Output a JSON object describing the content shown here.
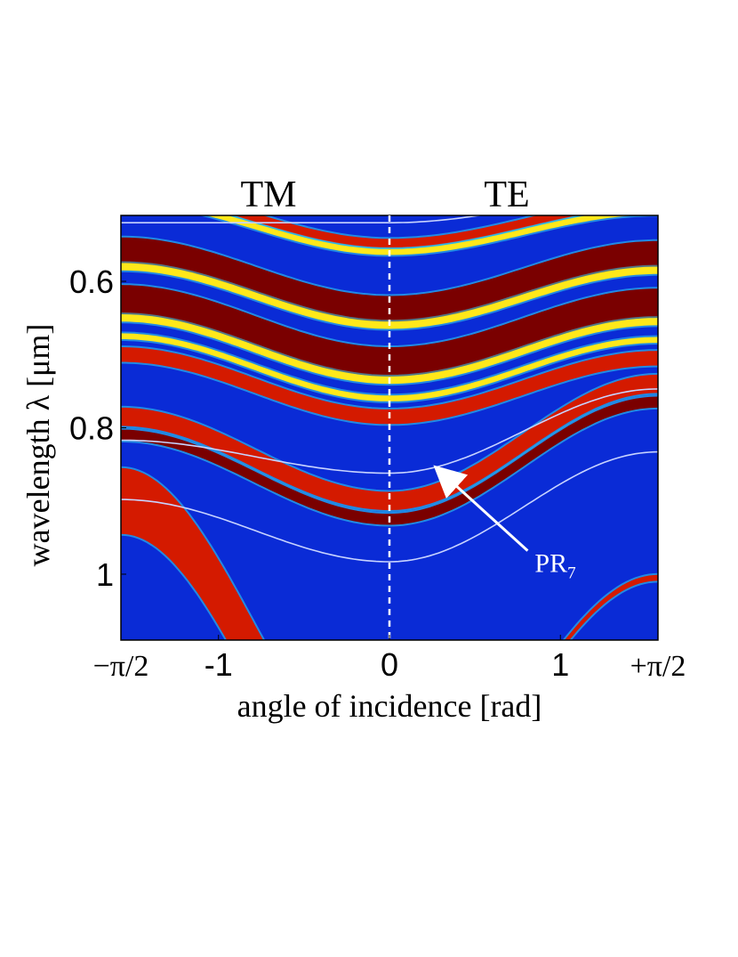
{
  "chart_data": {
    "type": "heatmap",
    "title": "",
    "panel_labels": {
      "left": "TM",
      "right": "TE"
    },
    "xlabel": "angle of incidence [rad]",
    "ylabel": "wavelength λ [μm]",
    "xlim": [
      -1.5708,
      1.5708
    ],
    "ylim": [
      1.09,
      0.51
    ],
    "x_ticks": [
      {
        "value": -1.5708,
        "label": "−π/2"
      },
      {
        "value": -1,
        "label": "-1"
      },
      {
        "value": 0,
        "label": "0"
      },
      {
        "value": 1,
        "label": "1"
      },
      {
        "value": 1.5708,
        "label": "+π/2"
      }
    ],
    "y_ticks": [
      {
        "value": 0.6,
        "label": "0.6"
      },
      {
        "value": 0.8,
        "label": "0.8"
      },
      {
        "value": 1.0,
        "label": "1"
      }
    ],
    "divider": {
      "x": 0,
      "style": "dashed",
      "color": "#ffffff"
    },
    "background_color": "#0a2bd6",
    "colors": {
      "dark_red": "#7a0000",
      "red": "#d41a00",
      "orange": "#ff7a00",
      "yellow": "#ffe81a",
      "cyan": "#35d8f0",
      "light_blue": "#8ab8ff",
      "white_line": "#c8d4ff"
    },
    "bands": [
      {
        "name": "band-top-1",
        "center_at_normal": 0.548,
        "width": 0.012,
        "shift_tm": 0.07,
        "shift_te": 0.055,
        "color": "red"
      },
      {
        "name": "band-top-2",
        "center_at_normal": 0.56,
        "width": 0.008,
        "shift_tm": 0.07,
        "shift_te": 0.055,
        "color": "yellow"
      },
      {
        "name": "band-main-1",
        "center_at_normal": 0.64,
        "width": 0.04,
        "shift_tm": 0.08,
        "shift_te": 0.075,
        "color": "dark_red"
      },
      {
        "name": "band-main-yellow-1",
        "center_at_normal": 0.66,
        "width": 0.01,
        "shift_tm": 0.08,
        "shift_te": 0.075,
        "color": "yellow"
      },
      {
        "name": "band-main-2",
        "center_at_normal": 0.71,
        "width": 0.04,
        "shift_tm": 0.085,
        "shift_te": 0.08,
        "color": "dark_red"
      },
      {
        "name": "band-main-yellow-2",
        "center_at_normal": 0.735,
        "width": 0.01,
        "shift_tm": 0.085,
        "shift_te": 0.08,
        "color": "yellow"
      },
      {
        "name": "band-main-yellow-3",
        "center_at_normal": 0.76,
        "width": 0.008,
        "shift_tm": 0.085,
        "shift_te": 0.08,
        "color": "yellow"
      },
      {
        "name": "band-main-3",
        "center_at_normal": 0.785,
        "width": 0.02,
        "shift_tm": 0.085,
        "shift_te": 0.08,
        "color": "red"
      },
      {
        "name": "band-lower-1",
        "center_at_normal": 0.9,
        "width": 0.025,
        "shift_tm": 0.115,
        "shift_te": 0.16,
        "color": "red"
      },
      {
        "name": "band-lower-2",
        "center_at_normal": 0.925,
        "width": 0.015,
        "shift_tm": 0.115,
        "shift_te": 0.16,
        "color": "dark_red"
      },
      {
        "name": "band-bottom-tm",
        "center_at_normal": 1.33,
        "width": 0.09,
        "shift_tm": 0.43,
        "shift_te": 0.0,
        "color": "red"
      },
      {
        "name": "band-bottom-te",
        "center_at_normal": 1.335,
        "width": 0.008,
        "shift_tm": 0.0,
        "shift_te": 0.33,
        "color": "red"
      }
    ],
    "thin_lines": [
      {
        "name": "line-te-top",
        "center_at_normal": 0.52,
        "shift_tm": 0.0,
        "shift_te": 0.04
      },
      {
        "name": "line-pr7",
        "center_at_normal": 0.862,
        "shift_tm": 0.045,
        "shift_te": 0.115
      },
      {
        "name": "line-lower",
        "center_at_normal": 0.983,
        "shift_tm": 0.085,
        "shift_te": 0.15
      }
    ],
    "annotations": [
      {
        "text": "PR",
        "subscript": "7",
        "x": 0.85,
        "y": 0.985,
        "arrow_to": {
          "x": 0.28,
          "y": 0.856
        }
      }
    ]
  }
}
